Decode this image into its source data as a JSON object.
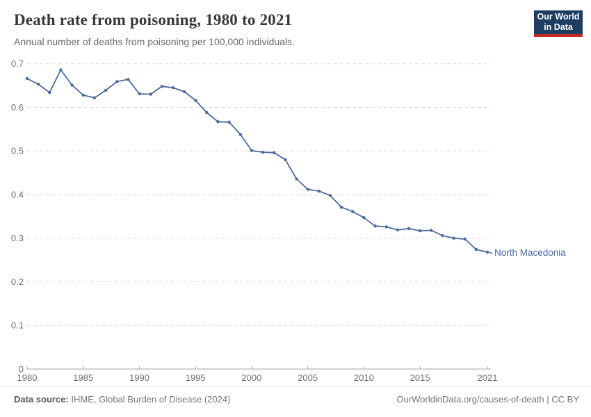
{
  "header": {
    "title": "Death rate from poisoning, 1980 to 2021",
    "subtitle": "Annual number of deaths from poisoning per 100,000 individuals.",
    "logo": {
      "line1": "Our World",
      "line2": "in Data",
      "bg": "#1d3d63",
      "stripe": "#c5281f"
    }
  },
  "chart_data": {
    "type": "line",
    "title": "Death rate from poisoning, 1980 to 2021",
    "ylabel": "Annual number of deaths from poisoning per 100,000 individuals",
    "xlim": [
      1980,
      2021
    ],
    "ylim": [
      0,
      0.7
    ],
    "grid": "horizontal-dashed",
    "legend_position": "end-of-line-label",
    "years": [
      1980,
      1981,
      1982,
      1983,
      1984,
      1985,
      1986,
      1987,
      1988,
      1989,
      1990,
      1991,
      1992,
      1993,
      1994,
      1995,
      1996,
      1997,
      1998,
      1999,
      2000,
      2001,
      2002,
      2003,
      2004,
      2005,
      2006,
      2007,
      2008,
      2009,
      2010,
      2011,
      2012,
      2013,
      2014,
      2015,
      2016,
      2017,
      2018,
      2019,
      2020,
      2021
    ],
    "series": [
      {
        "name": "North Macedonia",
        "color": "#4C6A9C",
        "values": [
          0.666,
          0.653,
          0.634,
          0.686,
          0.651,
          0.628,
          0.622,
          0.639,
          0.659,
          0.664,
          0.631,
          0.63,
          0.648,
          0.645,
          0.636,
          0.616,
          0.588,
          0.567,
          0.566,
          0.538,
          0.501,
          0.497,
          0.496,
          0.48,
          0.436,
          0.412,
          0.408,
          0.398,
          0.371,
          0.361,
          0.347,
          0.328,
          0.326,
          0.319,
          0.322,
          0.317,
          0.318,
          0.306,
          0.3,
          0.298,
          0.274,
          0.268
        ]
      }
    ],
    "xticks": [
      {
        "v": 1980,
        "label": "1980"
      },
      {
        "v": 1985,
        "label": "1985"
      },
      {
        "v": 1990,
        "label": "1990"
      },
      {
        "v": 1995,
        "label": "1995"
      },
      {
        "v": 2000,
        "label": "2000"
      },
      {
        "v": 2005,
        "label": "2005"
      },
      {
        "v": 2010,
        "label": "2010"
      },
      {
        "v": 2015,
        "label": "2015"
      },
      {
        "v": 2021,
        "label": "2021"
      }
    ],
    "yticks": [
      {
        "v": 0,
        "label": "0"
      },
      {
        "v": 0.1,
        "label": "0.1"
      },
      {
        "v": 0.2,
        "label": "0.2"
      },
      {
        "v": 0.3,
        "label": "0.3"
      },
      {
        "v": 0.4,
        "label": "0.4"
      },
      {
        "v": 0.5,
        "label": "0.5"
      },
      {
        "v": 0.6,
        "label": "0.6"
      },
      {
        "v": 0.7,
        "label": "0.7"
      }
    ],
    "colors": {
      "grid": "#dadada",
      "axis": "#a6a6a6",
      "tick_text": "#6e6e6e"
    }
  },
  "footer": {
    "source_label": "Data source:",
    "source_value": "IHME, Global Burden of Disease (2024)",
    "right_text": "OurWorldinData.org/causes-of-death | CC BY"
  }
}
